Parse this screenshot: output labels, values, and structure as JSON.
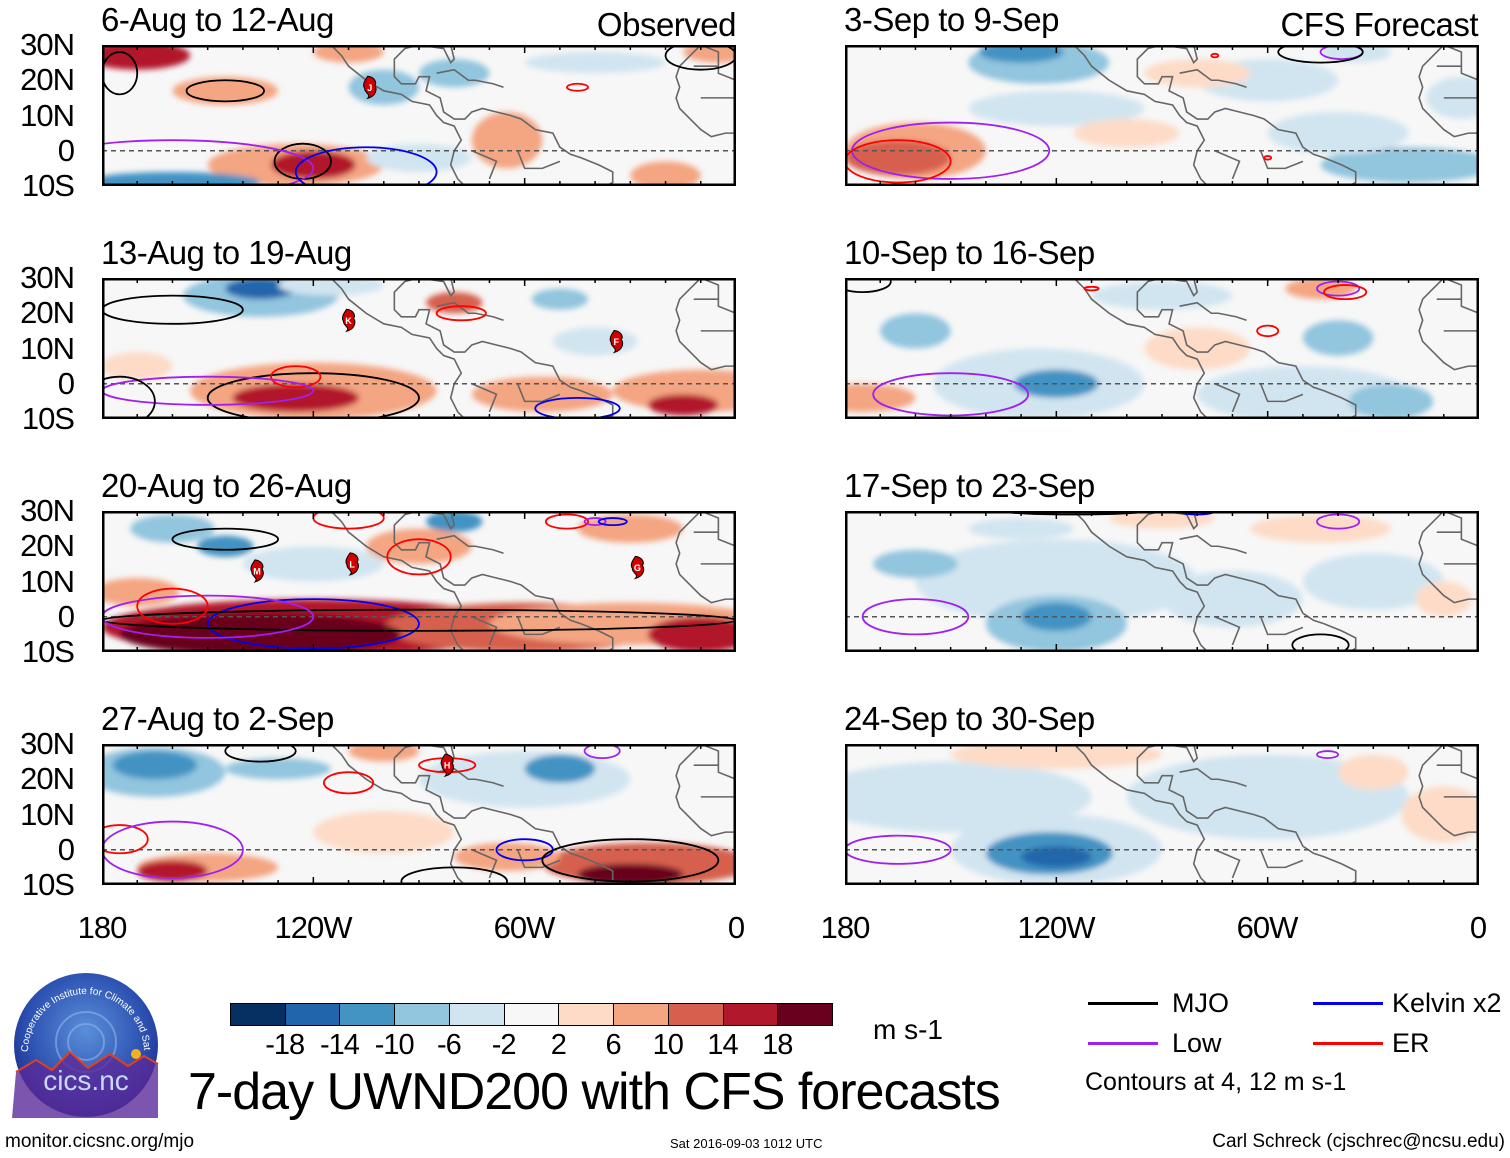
{
  "header": {
    "observed_label": "Observed",
    "forecast_label": "CFS Forecast"
  },
  "panels": {
    "observed": [
      {
        "title": "6-Aug to 12-Aug",
        "storms": [
          {
            "letter": "J",
            "lon": -104,
            "lat": 18
          }
        ]
      },
      {
        "title": "13-Aug to 19-Aug",
        "storms": [
          {
            "letter": "K",
            "lon": -110,
            "lat": 18
          },
          {
            "letter": "F",
            "lon": -34,
            "lat": 12
          }
        ]
      },
      {
        "title": "20-Aug to 26-Aug",
        "storms": [
          {
            "letter": "M",
            "lon": -136,
            "lat": 13
          },
          {
            "letter": "L",
            "lon": -109,
            "lat": 15
          },
          {
            "letter": "G",
            "lon": -28,
            "lat": 14
          }
        ]
      },
      {
        "title": "27-Aug to 2-Sep",
        "storms": [
          {
            "letter": "H",
            "lon": -82,
            "lat": 24
          }
        ]
      }
    ],
    "forecast": [
      {
        "title": "3-Sep to 9-Sep",
        "storms": []
      },
      {
        "title": "10-Sep to 16-Sep",
        "storms": []
      },
      {
        "title": "17-Sep to 23-Sep",
        "storms": []
      },
      {
        "title": "24-Sep to 30-Sep",
        "storms": []
      }
    ]
  },
  "axes": {
    "lat_labels": [
      "30N",
      "20N",
      "10N",
      "0",
      "10S"
    ],
    "lon_labels": [
      "180",
      "120W",
      "60W",
      "0"
    ]
  },
  "colorbar": {
    "colors": [
      "#053061",
      "#2166ac",
      "#4393c3",
      "#92c5de",
      "#d1e5f0",
      "#f7f7f7",
      "#fddbc7",
      "#f4a582",
      "#d6604d",
      "#b2182b",
      "#67001f"
    ],
    "labels": [
      "-18",
      "-14",
      "-10",
      "-6",
      "-2",
      "2",
      "6",
      "10",
      "14",
      "18"
    ],
    "units": "m s-1"
  },
  "title": "7-day UWND200 with CFS forecasts",
  "legend": {
    "items": [
      {
        "label": "MJO",
        "color": "#000000"
      },
      {
        "label": "Kelvin x2",
        "color": "#0000ee"
      },
      {
        "label": "Low",
        "color": "#a020f0"
      },
      {
        "label": "ER",
        "color": "#ff0000"
      }
    ],
    "contours_note": "Contours at 4, 12 m s-1"
  },
  "logo": {
    "name": "cics.nc",
    "arc_text": "Cooperative Institute for Climate and Satellites"
  },
  "footer": {
    "url": "monitor.cicsnc.org/mjo",
    "timestamp": "Sat 2016-09-03 1012 UTC",
    "credit": "Carl Schreck (cjschrec@ncsu.edu)"
  }
}
